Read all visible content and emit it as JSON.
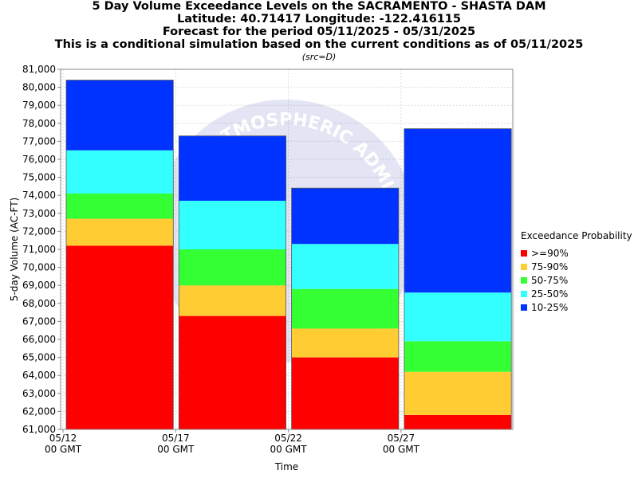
{
  "titles": {
    "line1": "5 Day Volume Exceedance Levels on the SACRAMENTO - SHASTA DAM",
    "line2": "Latitude: 40.71417 Longitude: -122.416115",
    "line3": "Forecast for the period 05/11/2025 - 05/31/2025",
    "line4": "This is a conditional simulation based on the current conditions as of 05/11/2025",
    "src": "(src=D)"
  },
  "watermark_text": "AND ATMOSPHERIC ADMI",
  "colors": {
    "p90": "#ff0000",
    "p75_90": "#ffcc33",
    "p50_75": "#33ff33",
    "p25_50": "#33ffff",
    "p10_25": "#0033ff",
    "grid": "#dddddd"
  },
  "legend": {
    "title": "Exceedance Probability",
    "items": [
      {
        "label": ">=90%",
        "color": "#ff0000"
      },
      {
        "label": "75-90%",
        "color": "#ffcc33"
      },
      {
        "label": "50-75%",
        "color": "#33ff33"
      },
      {
        "label": "25-50%",
        "color": "#33ffff"
      },
      {
        "label": "10-25%",
        "color": "#0033ff"
      }
    ]
  },
  "chart_data": {
    "type": "bar",
    "subtype": "stacked-range",
    "title": "5 Day Volume Exceedance Levels on the SACRAMENTO - SHASTA DAM",
    "xlabel": "Time",
    "ylabel": "5-day Volume (AC-FT)",
    "ylim": [
      61000,
      81000
    ],
    "y_ticks": [
      61000,
      62000,
      63000,
      64000,
      65000,
      66000,
      67000,
      68000,
      69000,
      70000,
      71000,
      72000,
      73000,
      74000,
      75000,
      76000,
      77000,
      78000,
      79000,
      80000,
      81000
    ],
    "x_ticks": [
      {
        "date": "05/12",
        "sub": "00 GMT"
      },
      {
        "date": "05/17",
        "sub": "00 GMT"
      },
      {
        "date": "05/22",
        "sub": "00 GMT"
      },
      {
        "date": "05/27",
        "sub": "00 GMT"
      }
    ],
    "grid": true,
    "legend_position": "right",
    "bars": [
      {
        "start": "05/12",
        "end": "05/17",
        "levels": [
          71200,
          72700,
          74100,
          76500,
          80400
        ]
      },
      {
        "start": "05/17",
        "end": "05/22",
        "levels": [
          67300,
          69000,
          71000,
          73700,
          77300
        ]
      },
      {
        "start": "05/22",
        "end": "05/27",
        "levels": [
          65000,
          66600,
          68800,
          71300,
          74400
        ]
      },
      {
        "start": "05/27",
        "end": "06/01",
        "levels": [
          61800,
          64200,
          65900,
          68600,
          77700
        ]
      }
    ],
    "series": [
      {
        "name": ">=90%",
        "values": [
          71200,
          67300,
          65000,
          61800
        ]
      },
      {
        "name": "75-90%",
        "values": [
          72700,
          69000,
          66600,
          64200
        ]
      },
      {
        "name": "50-75%",
        "values": [
          74100,
          71000,
          68800,
          65900
        ]
      },
      {
        "name": "25-50%",
        "values": [
          76500,
          73700,
          71300,
          68600
        ]
      },
      {
        "name": "10-25%",
        "values": [
          80400,
          77300,
          74400,
          77700
        ]
      }
    ]
  }
}
